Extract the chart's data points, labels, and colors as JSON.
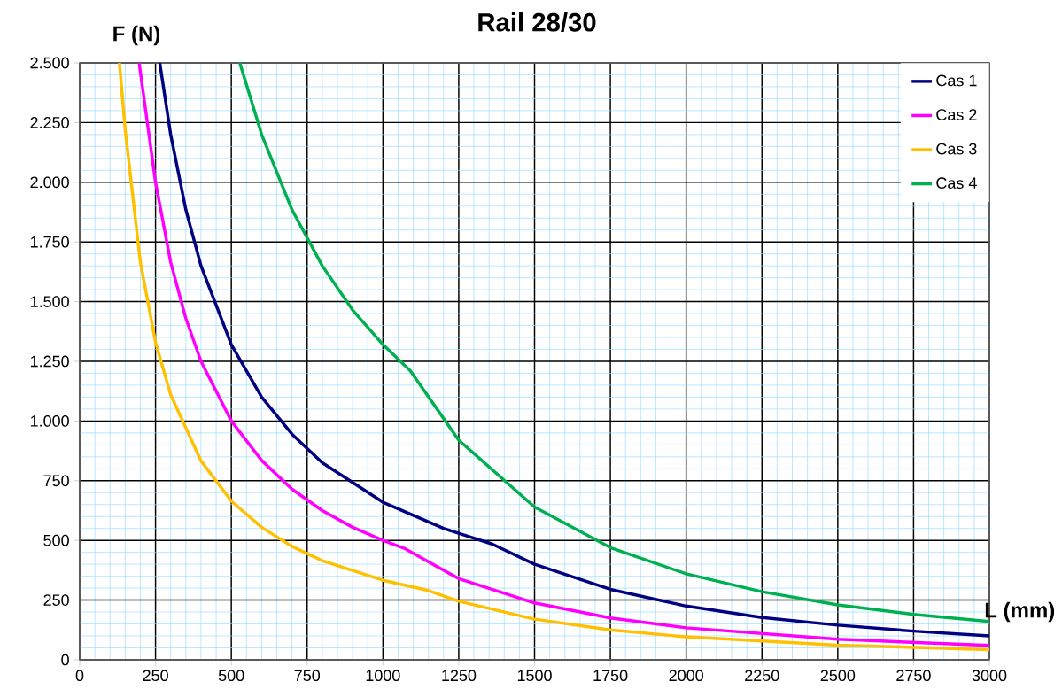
{
  "chart_data": {
    "type": "line",
    "title": "Rail 28/30",
    "xlabel": "L (mm)",
    "ylabel": "F (N)",
    "xlim": [
      0,
      3000
    ],
    "ylim": [
      0,
      2500
    ],
    "xticks": [
      0,
      250,
      500,
      750,
      1000,
      1250,
      1500,
      1750,
      2000,
      2250,
      2500,
      2750,
      3000,
      {
        "value": 50,
        "label": null
      },
      {
        "value": 100,
        "label": null
      },
      {
        "value": 150,
        "label": null
      },
      {
        "value": 200,
        "label": null
      },
      {
        "value": 300,
        "label": null
      },
      {
        "value": 350,
        "label": null
      },
      {
        "value": 400,
        "label": null
      },
      {
        "value": 450,
        "label": null
      },
      {
        "value": 550,
        "label": null
      },
      {
        "value": 600,
        "label": null
      },
      {
        "value": 650,
        "label": null
      },
      {
        "value": 700,
        "label": null
      },
      {
        "value": 800,
        "label": null
      },
      {
        "value": 850,
        "label": null
      },
      {
        "value": 900,
        "label": null
      },
      {
        "value": 950,
        "label": null
      },
      {
        "value": 1050,
        "label": null
      },
      {
        "value": 1100,
        "label": null
      },
      {
        "value": 1150,
        "label": null
      },
      {
        "value": 1200,
        "label": null
      },
      {
        "value": 1300,
        "label": null
      },
      {
        "value": 1350,
        "label": null
      },
      {
        "value": 1400,
        "label": null
      },
      {
        "value": 1450,
        "label": null
      },
      {
        "value": 1550,
        "label": null
      },
      {
        "value": 1600,
        "label": null
      },
      {
        "value": 1650,
        "label": null
      },
      {
        "value": 1700,
        "label": null
      },
      {
        "value": 1800,
        "label": null
      },
      {
        "value": 1850,
        "label": null
      },
      {
        "value": 1900,
        "label": null
      },
      {
        "value": 1950,
        "label": null
      },
      {
        "value": 2050,
        "label": null
      },
      {
        "value": 2100,
        "label": null
      },
      {
        "value": 2150,
        "label": null
      },
      {
        "value": 2200,
        "label": null
      },
      {
        "value": 2300,
        "label": null
      },
      {
        "value": 2350,
        "label": null
      },
      {
        "value": 2400,
        "label": null
      },
      {
        "value": 2450,
        "label": null
      },
      {
        "value": 2550,
        "label": null
      },
      {
        "value": 2600,
        "label": null
      },
      {
        "value": 2650,
        "label": null
      },
      {
        "value": 2700,
        "label": null
      },
      {
        "value": 2800,
        "label": null
      },
      {
        "value": 2850,
        "label": null
      },
      {
        "value": 2900,
        "label": null
      },
      {
        "value": 2950,
        "label": null
      }
    ],
    "yticks": [
      0,
      250,
      500,
      750,
      {
        "value": 1000,
        "label": "1.000"
      },
      {
        "value": 1250,
        "label": "1.250"
      },
      {
        "value": 1500,
        "label": "1.500"
      },
      {
        "value": 1750,
        "label": "1.750"
      },
      {
        "value": 2000,
        "label": "2.000"
      },
      {
        "value": 2250,
        "label": "2.250"
      },
      {
        "value": 2500,
        "label": "2.500"
      },
      {
        "value": 50,
        "label": null
      },
      {
        "value": 100,
        "label": null
      },
      {
        "value": 150,
        "label": null
      },
      {
        "value": 200,
        "label": null
      },
      {
        "value": 300,
        "label": null
      },
      {
        "value": 350,
        "label": null
      },
      {
        "value": 400,
        "label": null
      },
      {
        "value": 450,
        "label": null
      },
      {
        "value": 550,
        "label": null
      },
      {
        "value": 600,
        "label": null
      },
      {
        "value": 650,
        "label": null
      },
      {
        "value": 700,
        "label": null
      },
      {
        "value": 800,
        "label": null
      },
      {
        "value": 850,
        "label": null
      },
      {
        "value": 900,
        "label": null
      },
      {
        "value": 950,
        "label": null
      },
      {
        "value": 1050,
        "label": null
      },
      {
        "value": 1100,
        "label": null
      },
      {
        "value": 1150,
        "label": null
      },
      {
        "value": 1200,
        "label": null
      },
      {
        "value": 1300,
        "label": null
      },
      {
        "value": 1350,
        "label": null
      },
      {
        "value": 1400,
        "label": null
      },
      {
        "value": 1450,
        "label": null
      },
      {
        "value": 1550,
        "label": null
      },
      {
        "value": 1600,
        "label": null
      },
      {
        "value": 1650,
        "label": null
      },
      {
        "value": 1700,
        "label": null
      },
      {
        "value": 1800,
        "label": null
      },
      {
        "value": 1850,
        "label": null
      },
      {
        "value": 1900,
        "label": null
      },
      {
        "value": 1950,
        "label": null
      },
      {
        "value": 2050,
        "label": null
      },
      {
        "value": 2100,
        "label": null
      },
      {
        "value": 2150,
        "label": null
      },
      {
        "value": 2200,
        "label": null
      },
      {
        "value": 2300,
        "label": null
      },
      {
        "value": 2350,
        "label": null
      },
      {
        "value": 2400,
        "label": null
      },
      {
        "value": 2450,
        "label": null
      }
    ],
    "grid": true,
    "legend": "top right",
    "marker": "none",
    "line_style": "solid",
    "series": [
      {
        "name": "Cas 1",
        "color": "#000080",
        "x": [
          264,
          300,
          350,
          400,
          500,
          600,
          700,
          800,
          1000,
          1200,
          1360,
          1500,
          1750,
          2000,
          2250,
          2500,
          2750,
          3000
        ],
        "values": [
          2500,
          2200,
          1885,
          1650,
          1320,
          1100,
          945,
          825,
          660,
          550,
          485,
          400,
          295,
          225,
          177,
          145,
          120,
          100
        ]
      },
      {
        "name": "Cas 2",
        "color": "#ff00ff",
        "x": [
          196,
          250,
          300,
          350,
          400,
          500,
          600,
          700,
          800,
          900,
          1000,
          1070,
          1250,
          1500,
          1750,
          2000,
          2500,
          3000
        ],
        "values": [
          2500,
          2000,
          1665,
          1430,
          1250,
          1000,
          835,
          715,
          625,
          555,
          500,
          467,
          340,
          238,
          175,
          134,
          86,
          60
        ]
      },
      {
        "name": "Cas 3",
        "color": "#ffc000",
        "x": [
          131,
          150,
          200,
          250,
          300,
          400,
          500,
          600,
          700,
          800,
          1000,
          1150,
          1250,
          1500,
          1750,
          2000,
          2500,
          3000
        ],
        "values": [
          2500,
          2220,
          1665,
          1330,
          1110,
          833,
          665,
          555,
          475,
          415,
          333,
          290,
          245,
          170,
          125,
          96,
          61,
          43
        ]
      },
      {
        "name": "Cas 4",
        "color": "#00b050",
        "x": [
          528,
          600,
          700,
          800,
          900,
          1000,
          1090,
          1250,
          1500,
          1750,
          2000,
          2250,
          2500,
          2750,
          3000
        ],
        "values": [
          2500,
          2200,
          1885,
          1650,
          1465,
          1320,
          1211,
          920,
          640,
          470,
          360,
          285,
          230,
          190,
          160
        ]
      }
    ]
  }
}
